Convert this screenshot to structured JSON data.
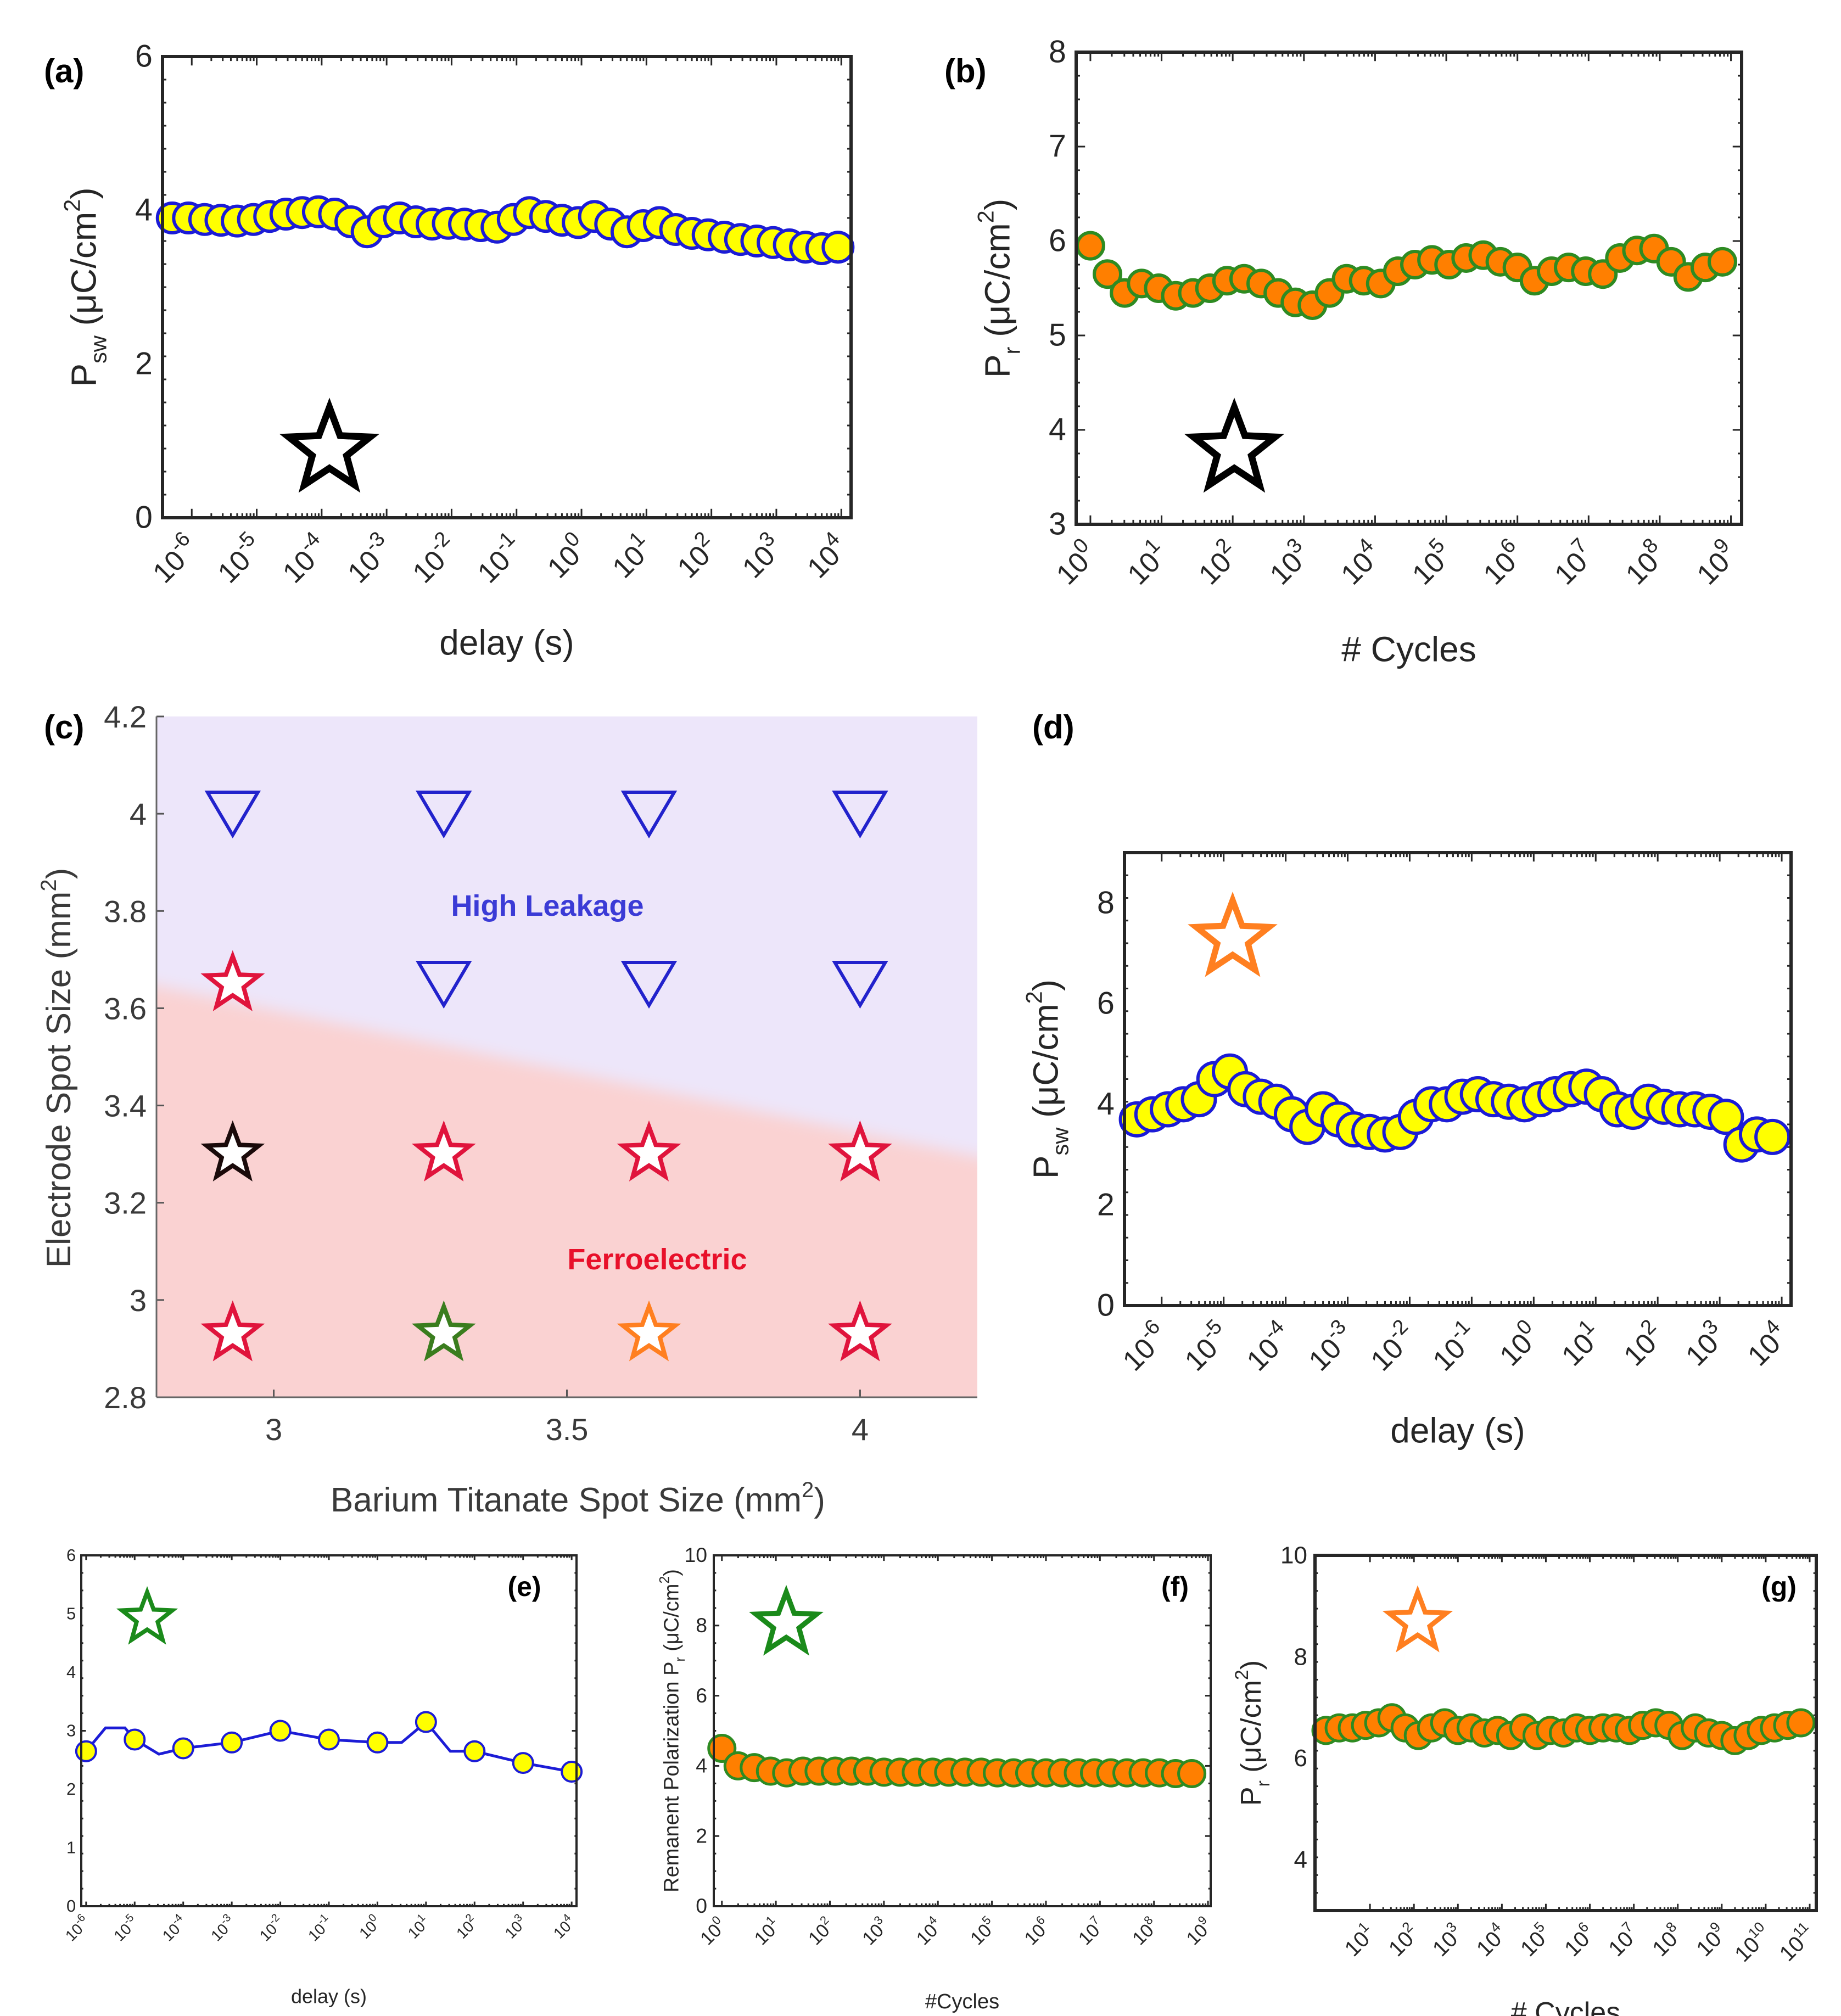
{
  "chart_data": [
    {
      "id": "a",
      "panel_label": "(a)",
      "type": "scatter",
      "xscale": "log",
      "ylabel_main": "P",
      "ylabel_sub": "sw",
      "ylabel_rest": " (μC/cm",
      "ylabel_sup": "2",
      "ylabel_end": ")",
      "xlabel": "delay (s)",
      "ylim": [
        0,
        6
      ],
      "yticks": [
        0,
        2,
        4,
        6
      ],
      "xticks_exp": [
        "-6",
        "-5",
        "-4",
        "-3",
        "-2",
        "-1",
        "0",
        "1",
        "2",
        "3",
        "4"
      ],
      "tick_base": "10",
      "x_log": [
        -6.3,
        -6.05,
        -5.8,
        -5.55,
        -5.3,
        -5.05,
        -4.8,
        -4.55,
        -4.3,
        -4.05,
        -3.8,
        -3.55,
        -3.3,
        -3.05,
        -2.8,
        -2.55,
        -2.3,
        -2.05,
        -1.8,
        -1.55,
        -1.3,
        -1.05,
        -0.8,
        -0.55,
        -0.3,
        -0.05,
        0.2,
        0.45,
        0.7,
        0.95,
        1.2,
        1.45,
        1.7,
        1.95,
        2.2,
        2.45,
        2.7,
        2.95,
        3.2,
        3.45,
        3.7,
        3.95
      ],
      "y": [
        3.9,
        3.9,
        3.88,
        3.87,
        3.86,
        3.88,
        3.92,
        3.95,
        3.97,
        3.98,
        3.95,
        3.85,
        3.72,
        3.85,
        3.9,
        3.85,
        3.82,
        3.83,
        3.82,
        3.8,
        3.78,
        3.88,
        3.97,
        3.92,
        3.87,
        3.84,
        3.92,
        3.82,
        3.72,
        3.8,
        3.84,
        3.75,
        3.7,
        3.68,
        3.65,
        3.62,
        3.6,
        3.58,
        3.55,
        3.52,
        3.5,
        3.52
      ],
      "marker_fill": "#ffff00",
      "marker_edge": "#1c1cd6",
      "star_color": "#000000"
    },
    {
      "id": "b",
      "panel_label": "(b)",
      "type": "scatter",
      "xscale": "log",
      "ylabel_main": "P",
      "ylabel_sub": "r",
      "ylabel_rest": " (μC/cm",
      "ylabel_sup": "2",
      "ylabel_end": ")",
      "xlabel": "# Cycles",
      "ylim": [
        3,
        8
      ],
      "yticks": [
        3,
        4,
        5,
        6,
        7,
        8
      ],
      "xticks_exp": [
        "0",
        "1",
        "2",
        "3",
        "4",
        "5",
        "6",
        "7",
        "8",
        "9"
      ],
      "tick_base": "10",
      "x_log": [
        0.0,
        0.24,
        0.48,
        0.72,
        0.96,
        1.2,
        1.44,
        1.68,
        1.92,
        2.16,
        2.4,
        2.64,
        2.88,
        3.12,
        3.36,
        3.6,
        3.84,
        4.08,
        4.32,
        4.56,
        4.8,
        5.04,
        5.28,
        5.52,
        5.76,
        6.0,
        6.24,
        6.48,
        6.72,
        6.96,
        7.2,
        7.44,
        7.68,
        7.92,
        8.16,
        8.4,
        8.64,
        8.88
      ],
      "y": [
        5.95,
        5.65,
        5.45,
        5.55,
        5.5,
        5.42,
        5.45,
        5.5,
        5.58,
        5.6,
        5.55,
        5.45,
        5.35,
        5.32,
        5.45,
        5.6,
        5.58,
        5.55,
        5.68,
        5.75,
        5.8,
        5.75,
        5.82,
        5.85,
        5.78,
        5.72,
        5.58,
        5.68,
        5.72,
        5.68,
        5.65,
        5.82,
        5.9,
        5.92,
        5.78,
        5.62,
        5.72,
        5.78
      ],
      "marker_fill": "#ff7f00",
      "marker_edge": "#2e8b22",
      "star_color": "#000000"
    },
    {
      "id": "c",
      "panel_label": "(c)",
      "type": "scatter",
      "ylabel_main": "Electrode Spot Size (mm",
      "ylabel_sup": "2",
      "ylabel_end": ")",
      "xlabel_main": "Barium Titanate Spot Size (mm",
      "xlabel_sup": "2",
      "xlabel_end": ")",
      "xlim": [
        2.8,
        4.2
      ],
      "ylim": [
        2.8,
        4.2
      ],
      "xticks": [
        "3",
        "3.5",
        "4"
      ],
      "yticks": [
        "2.8",
        "3",
        "3.2",
        "3.4",
        "3.6",
        "3.8",
        "4",
        "4.2"
      ],
      "region_high": "High Leakage",
      "region_ferro": "Ferroelectric",
      "region_high_color": "#ede6fa",
      "region_ferro_color": "#fad2d2",
      "points": [
        {
          "x": 2.93,
          "y": 4.0,
          "marker": "triangle-down",
          "color": "#2222cc"
        },
        {
          "x": 3.29,
          "y": 4.0,
          "marker": "triangle-down",
          "color": "#2222cc"
        },
        {
          "x": 3.64,
          "y": 4.0,
          "marker": "triangle-down",
          "color": "#2222cc"
        },
        {
          "x": 4.0,
          "y": 4.0,
          "marker": "triangle-down",
          "color": "#2222cc"
        },
        {
          "x": 2.93,
          "y": 3.65,
          "marker": "star",
          "color": "#e0143c"
        },
        {
          "x": 3.29,
          "y": 3.65,
          "marker": "triangle-down",
          "color": "#2222cc"
        },
        {
          "x": 3.64,
          "y": 3.65,
          "marker": "triangle-down",
          "color": "#2222cc"
        },
        {
          "x": 4.0,
          "y": 3.65,
          "marker": "triangle-down",
          "color": "#2222cc"
        },
        {
          "x": 2.93,
          "y": 3.3,
          "marker": "star",
          "color": "#1a0a0a"
        },
        {
          "x": 3.29,
          "y": 3.3,
          "marker": "star",
          "color": "#e0143c"
        },
        {
          "x": 3.64,
          "y": 3.3,
          "marker": "star",
          "color": "#e0143c"
        },
        {
          "x": 4.0,
          "y": 3.3,
          "marker": "star",
          "color": "#e0143c"
        },
        {
          "x": 2.93,
          "y": 2.93,
          "marker": "star",
          "color": "#e0143c"
        },
        {
          "x": 3.29,
          "y": 2.93,
          "marker": "star",
          "color": "#3a7d1e"
        },
        {
          "x": 3.64,
          "y": 2.93,
          "marker": "star",
          "color": "#ff7f20"
        },
        {
          "x": 4.0,
          "y": 2.93,
          "marker": "star",
          "color": "#e0143c"
        }
      ]
    },
    {
      "id": "d",
      "panel_label": "(d)",
      "type": "scatter",
      "xscale": "log",
      "ylabel_main": "P",
      "ylabel_sub": "sw",
      "ylabel_rest": " (μC/cm",
      "ylabel_sup": "2",
      "ylabel_end": ")",
      "xlabel": "delay (s)",
      "ylim": [
        0,
        9
      ],
      "yticks": [
        0,
        2,
        4,
        6,
        8
      ],
      "xticks_exp": [
        "-6",
        "-5",
        "-4",
        "-3",
        "-2",
        "-1",
        "0",
        "1",
        "2",
        "3",
        "4"
      ],
      "tick_base": "10",
      "x_log": [
        -6.4,
        -6.15,
        -5.9,
        -5.65,
        -5.4,
        -5.15,
        -4.9,
        -4.65,
        -4.4,
        -4.15,
        -3.9,
        -3.65,
        -3.4,
        -3.15,
        -2.9,
        -2.65,
        -2.4,
        -2.15,
        -1.9,
        -1.65,
        -1.4,
        -1.15,
        -0.9,
        -0.65,
        -0.4,
        -0.15,
        0.1,
        0.35,
        0.6,
        0.85,
        1.1,
        1.35,
        1.6,
        1.85,
        2.1,
        2.35,
        2.6,
        2.85,
        3.1,
        3.35,
        3.6,
        3.85
      ],
      "y": [
        3.7,
        3.8,
        3.9,
        4.0,
        4.1,
        4.5,
        4.65,
        4.3,
        4.15,
        4.05,
        3.8,
        3.55,
        3.9,
        3.7,
        3.5,
        3.45,
        3.4,
        3.45,
        3.75,
        4.0,
        4.0,
        4.15,
        4.2,
        4.1,
        4.05,
        4.0,
        4.1,
        4.2,
        4.3,
        4.35,
        4.2,
        3.9,
        3.85,
        4.05,
        3.95,
        3.9,
        3.9,
        3.85,
        3.75,
        3.2,
        3.4,
        3.35
      ],
      "marker_fill": "#ffff00",
      "marker_edge": "#1c1cd6",
      "star_color": "#ff7f20"
    },
    {
      "id": "e",
      "panel_label": "(e)",
      "type": "line",
      "xscale": "log",
      "xlabel": "delay (s)",
      "ylim": [
        0,
        6
      ],
      "yticks": [
        0,
        1,
        2,
        3,
        4,
        5,
        6
      ],
      "xticks_exp": [
        "-6",
        "-5",
        "-4",
        "-3",
        "-2",
        "-1",
        "0",
        "1",
        "2",
        "3",
        "4"
      ],
      "tick_base": "10",
      "x_log": [
        -6,
        -5,
        -4,
        -3,
        -2,
        -1,
        0,
        1,
        2,
        3,
        4
      ],
      "y": [
        2.65,
        2.85,
        2.7,
        2.8,
        3.0,
        2.85,
        2.8,
        3.15,
        2.65,
        2.45,
        2.3
      ],
      "line_x_log": [
        -6,
        -5.6,
        -5.2,
        -5,
        -4.5,
        -4,
        -3,
        -2,
        -1,
        0,
        0.5,
        1,
        1.5,
        2,
        3,
        4
      ],
      "line_y": [
        2.65,
        3.05,
        3.05,
        2.85,
        2.6,
        2.7,
        2.8,
        3.0,
        2.85,
        2.8,
        2.8,
        3.15,
        2.65,
        2.65,
        2.45,
        2.3
      ],
      "marker_fill": "#ffff00",
      "marker_edge": "#1c1cd6",
      "star_color": "#1a8a1a"
    },
    {
      "id": "f",
      "panel_label": "(f)",
      "type": "scatter",
      "xscale": "log",
      "ylabel_main": "Remanent Polarization P",
      "ylabel_sub": "r",
      "ylabel_rest": " (μC/cm",
      "ylabel_sup": "2",
      "ylabel_end": ")",
      "xlabel": "#Cycles",
      "ylim": [
        0,
        10
      ],
      "yticks": [
        0,
        2,
        4,
        6,
        8,
        10
      ],
      "xticks_exp": [
        "0",
        "1",
        "2",
        "3",
        "4",
        "5",
        "6",
        "7",
        "8",
        "9"
      ],
      "tick_base": "10",
      "x_log": [
        0.0,
        0.3,
        0.6,
        0.9,
        1.2,
        1.5,
        1.8,
        2.1,
        2.4,
        2.7,
        3.0,
        3.3,
        3.6,
        3.9,
        4.2,
        4.5,
        4.8,
        5.1,
        5.4,
        5.7,
        6.0,
        6.3,
        6.6,
        6.9,
        7.2,
        7.5,
        7.8,
        8.1,
        8.4,
        8.7
      ],
      "y": [
        4.5,
        4.0,
        3.95,
        3.85,
        3.8,
        3.85,
        3.85,
        3.85,
        3.85,
        3.85,
        3.82,
        3.82,
        3.82,
        3.82,
        3.82,
        3.82,
        3.82,
        3.8,
        3.8,
        3.8,
        3.8,
        3.8,
        3.8,
        3.8,
        3.8,
        3.8,
        3.8,
        3.8,
        3.78,
        3.78
      ],
      "marker_fill": "#ff7f00",
      "marker_edge": "#2e8b22",
      "star_color": "#1a8a1a"
    },
    {
      "id": "g",
      "panel_label": "(g)",
      "type": "scatter",
      "xscale": "log",
      "ylabel_main": "P",
      "ylabel_sub": "r",
      "ylabel_rest": " (μC/cm",
      "ylabel_sup": "2",
      "ylabel_end": ")",
      "xlabel": "# Cycles",
      "ylim": [
        3,
        10
      ],
      "yticks": [
        4,
        6,
        8,
        10
      ],
      "xticks_exp": [
        "1",
        "2",
        "3",
        "4",
        "5",
        "6",
        "7",
        "8",
        "9",
        "10",
        "11"
      ],
      "tick_base": "10",
      "x_log": [
        0.0,
        0.3,
        0.6,
        0.9,
        1.2,
        1.5,
        1.8,
        2.1,
        2.4,
        2.7,
        3.0,
        3.3,
        3.6,
        3.9,
        4.2,
        4.5,
        4.8,
        5.1,
        5.4,
        5.7,
        6.0,
        6.3,
        6.6,
        6.9,
        7.2,
        7.5,
        7.8,
        8.1,
        8.4,
        8.7,
        9.0,
        9.3,
        9.6,
        9.9,
        10.2,
        10.5,
        10.8
      ],
      "y": [
        6.55,
        6.6,
        6.6,
        6.65,
        6.7,
        6.8,
        6.6,
        6.45,
        6.6,
        6.7,
        6.55,
        6.6,
        6.5,
        6.55,
        6.45,
        6.6,
        6.45,
        6.55,
        6.5,
        6.6,
        6.55,
        6.6,
        6.6,
        6.55,
        6.65,
        6.7,
        6.65,
        6.45,
        6.6,
        6.5,
        6.45,
        6.35,
        6.45,
        6.55,
        6.6,
        6.65,
        6.7
      ],
      "marker_fill": "#ff7f00",
      "marker_edge": "#2e8b22",
      "star_color": "#ff7f20"
    }
  ]
}
